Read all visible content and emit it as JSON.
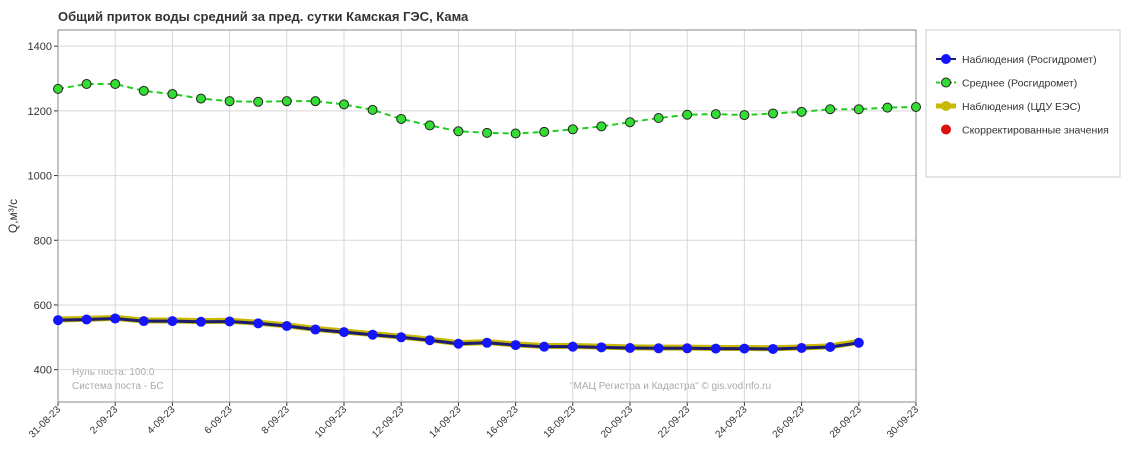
{
  "chart_data": {
    "type": "line",
    "title": "Общий приток воды средний за пред. сутки Камская ГЭС,  Кама",
    "y_label": "Q,м³/с",
    "annotations": [
      "Нуль поста: 100.0",
      "Система поста - БС",
      "\"МАЦ Регистра и Кадастра\" © gis.vodinfo.ru"
    ],
    "categories": [
      "31-08-23",
      null,
      "2-09-23",
      null,
      "4-09-23",
      null,
      "6-09-23",
      null,
      "8-09-23",
      null,
      "10-09-23",
      null,
      "12-09-23",
      null,
      "14-09-23",
      null,
      "16-09-23",
      null,
      "18-09-23",
      null,
      "20-09-23",
      null,
      "22-09-23",
      null,
      "24-09-23",
      null,
      "26-09-23",
      null,
      "28-09-23",
      null,
      "30-09-23"
    ],
    "ylim": [
      300,
      1450
    ],
    "yticks": [
      400,
      600,
      800,
      1000,
      1200,
      1400
    ],
    "grid": true,
    "legend": "right",
    "series": [
      {
        "name": "Наблюдения (Росгидромет)",
        "color": "#1414ff",
        "line_color": "#1c1c6e",
        "dash": false,
        "marker": true,
        "line": true,
        "values": [
          553,
          555,
          558,
          550,
          550,
          548,
          549,
          543,
          535,
          524,
          516,
          508,
          500,
          491,
          480,
          483,
          476,
          471,
          471,
          469,
          467,
          466,
          466,
          465,
          465,
          464,
          467,
          470,
          483,
          null,
          null
        ]
      },
      {
        "name": "Среднее (Росгидромет)",
        "color": "#33dd33",
        "line_color": "#22cc22",
        "dash": true,
        "marker": true,
        "line": true,
        "values": [
          1268,
          1283,
          1283,
          1262,
          1252,
          1238,
          1230,
          1228,
          1230,
          1230,
          1220,
          1203,
          1175,
          1155,
          1137,
          1132,
          1130,
          1135,
          1143,
          1152,
          1165,
          1178,
          1188,
          1190,
          1187,
          1192,
          1197,
          1205,
          1205,
          1210,
          1212
        ]
      },
      {
        "name": "Наблюдения (ЦДУ ЕЭС)",
        "color": "#c8b800",
        "line_color": "#c8b800",
        "dash": false,
        "marker": false,
        "line": true,
        "values": [
          555,
          557,
          560,
          552,
          552,
          550,
          551,
          545,
          537,
          526,
          518,
          510,
          502,
          493,
          482,
          485,
          478,
          473,
          473,
          471,
          469,
          468,
          468,
          467,
          467,
          466,
          469,
          472,
          486,
          null,
          null
        ]
      },
      {
        "name": "Скорректированные значения",
        "color": "#dd1111",
        "line_color": "#dd1111",
        "dash": false,
        "marker": true,
        "line": false,
        "values": [
          null,
          null,
          null,
          null,
          null,
          null,
          null,
          null,
          null,
          null,
          null,
          null,
          null,
          null,
          null,
          null,
          null,
          null,
          null,
          null,
          null,
          null,
          null,
          null,
          null,
          null,
          null,
          null,
          null,
          null,
          null
        ]
      }
    ]
  }
}
